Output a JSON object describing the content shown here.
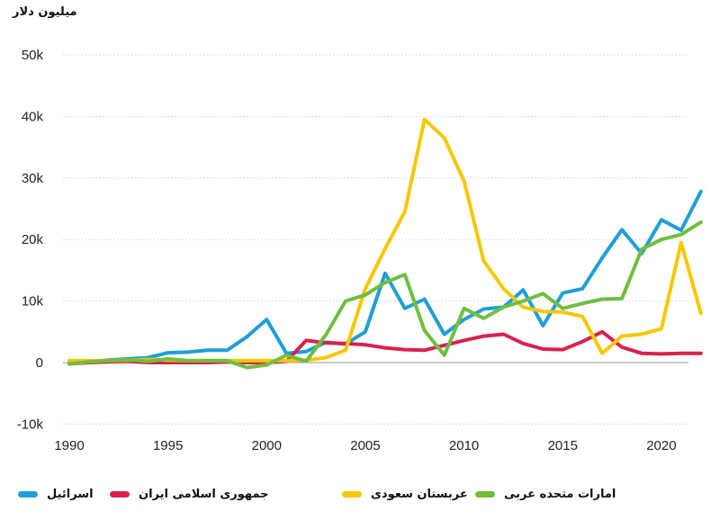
{
  "chart_data": {
    "type": "line",
    "title": "",
    "ylabel": "میلیون دلار",
    "xlabel": "",
    "xlim": [
      1990,
      2022
    ],
    "ylim": [
      -10000,
      50000
    ],
    "x_ticks": [
      "1990",
      "1995",
      "2000",
      "2005",
      "2010",
      "2015",
      "2020"
    ],
    "y_ticks": [
      "-10k",
      "0",
      "10k",
      "20k",
      "30k",
      "40k",
      "50k"
    ],
    "grid": true,
    "legend_placement": "bottom",
    "x": [
      1990,
      1991,
      1992,
      1993,
      1994,
      1995,
      1996,
      1997,
      1998,
      1999,
      2000,
      2001,
      2002,
      2003,
      2004,
      2005,
      2006,
      2007,
      2008,
      2009,
      2010,
      2011,
      2012,
      2013,
      2014,
      2015,
      2016,
      2017,
      2018,
      2019,
      2020,
      2021,
      2022
    ],
    "series": [
      {
        "name": "اسرائیل",
        "color": "#1e9fd6",
        "values": [
          0,
          100,
          400,
          600,
          800,
          1600,
          1700,
          2000,
          2000,
          4200,
          7000,
          1500,
          1800,
          3300,
          3000,
          5000,
          14500,
          8800,
          10300,
          4600,
          7000,
          8700,
          9000,
          11800,
          6000,
          11300,
          12000,
          17000,
          21600,
          17700,
          23200,
          21500,
          27800
        ]
      },
      {
        "name": "جمهوری اسلامی ایران",
        "color": "#d9214f",
        "values": [
          -200,
          0,
          100,
          200,
          0,
          0,
          0,
          0,
          100,
          0,
          0,
          200,
          3600,
          3200,
          3100,
          2900,
          2400,
          2100,
          2000,
          2800,
          3600,
          4300,
          4600,
          3100,
          2200,
          2100,
          3400,
          5000,
          2500,
          1500,
          1400,
          1500,
          1500
        ]
      },
      {
        "name": "عربستان سعودی",
        "color": "#f5c800",
        "values": [
          300,
          300,
          300,
          400,
          500,
          400,
          300,
          300,
          300,
          300,
          300,
          300,
          400,
          800,
          2000,
          12000,
          18500,
          24500,
          39500,
          36500,
          29500,
          16500,
          12000,
          9000,
          8300,
          8200,
          7500,
          1500,
          4300,
          4600,
          5500,
          19500,
          8000
        ]
      },
      {
        "name": "امارات متحده عربی",
        "color": "#6fbf3e",
        "values": [
          -200,
          100,
          300,
          500,
          200,
          600,
          300,
          300,
          300,
          -800,
          -400,
          1200,
          200,
          4500,
          10000,
          11000,
          13000,
          14300,
          5200,
          1200,
          8800,
          7200,
          9000,
          10000,
          11200,
          8800,
          9600,
          10300,
          10400,
          18400,
          20000,
          20800,
          22800
        ]
      }
    ]
  }
}
